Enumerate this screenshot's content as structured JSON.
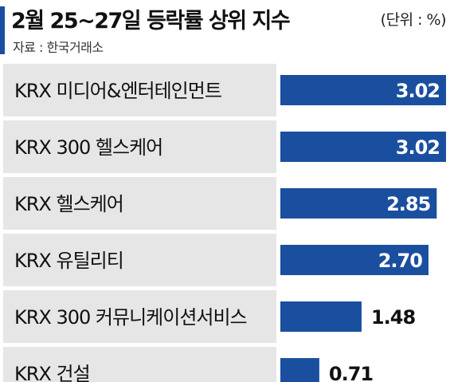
{
  "header": {
    "title": "2월 25~27일 등락률 상위 지수",
    "unit": "(단위 : %)",
    "source": "자료 : 한국거래소"
  },
  "colors": {
    "accent": "#1a4fa0",
    "bar": "#1a4fa0",
    "label_bg": "#e6e6e6",
    "text": "#111111"
  },
  "chart_data": {
    "type": "bar",
    "orientation": "horizontal",
    "categories": [
      "KRX 미디어&엔터테인먼트",
      "KRX 300 헬스케어",
      "KRX 헬스케어",
      "KRX 유틸리티",
      "KRX 300 커뮤니케이션서비스",
      "KRX 건설"
    ],
    "values": [
      3.02,
      3.02,
      2.85,
      2.7,
      1.48,
      0.71
    ],
    "value_labels": [
      "3.02",
      "3.02",
      "2.85",
      "2.70",
      "1.48",
      "0.71"
    ],
    "value_label_inside": [
      true,
      true,
      true,
      true,
      false,
      false
    ],
    "grid": false
  }
}
